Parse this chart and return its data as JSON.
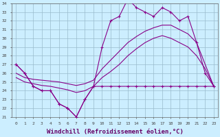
{
  "hours": [
    0,
    1,
    2,
    3,
    4,
    5,
    6,
    7,
    8,
    9,
    10,
    11,
    12,
    13,
    14,
    15,
    16,
    17,
    18,
    19,
    20,
    21,
    22,
    23
  ],
  "line_windchill": [
    27,
    26,
    24.5,
    24,
    24,
    22.5,
    22,
    21,
    23,
    24.5,
    29,
    32,
    32.5,
    34.5,
    33.5,
    33,
    32.5,
    33.5,
    33,
    32,
    32.5,
    29.5,
    26,
    24.5
  ],
  "line_temp": [
    27,
    26,
    24.5,
    24,
    24,
    22.5,
    22,
    21,
    23,
    24.5,
    24.5,
    24.5,
    24.5,
    24.5,
    24.5,
    24.5,
    24.5,
    24.5,
    24.5,
    24.5,
    24.5,
    24.5,
    24.5,
    24.5
  ],
  "line_upper": [
    26,
    25.5,
    25.3,
    25.2,
    25.1,
    25.0,
    24.8,
    24.6,
    24.8,
    25.2,
    26.5,
    27.5,
    28.5,
    29.5,
    30.2,
    30.8,
    31.2,
    31.5,
    31.5,
    31,
    30.5,
    29.5,
    27,
    24.5
  ],
  "line_lower": [
    25.5,
    25.0,
    24.8,
    24.6,
    24.5,
    24.3,
    24.1,
    23.8,
    24.0,
    24.5,
    25.5,
    26.2,
    27.0,
    28.0,
    28.8,
    29.5,
    30.0,
    30.3,
    30.0,
    29.5,
    29.0,
    28.0,
    26.5,
    24.5
  ],
  "bg_color": "#cceeff",
  "line_color": "#880088",
  "grid_color": "#99bbcc",
  "xlabel": "Windchill (Refroidissement éolien,°C)",
  "xlabel_fontsize": 6.5,
  "ymin": 21,
  "ymax": 34,
  "xmin": 0,
  "xmax": 23
}
